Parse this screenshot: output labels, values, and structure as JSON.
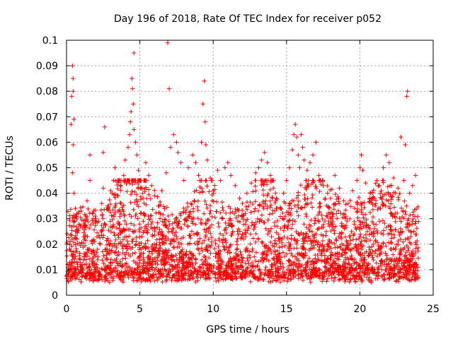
{
  "chart_data": {
    "type": "scatter",
    "title": "Day 196 of 2018, Rate Of TEC Index for receiver p052",
    "xlabel": "GPS time / hours",
    "ylabel": "ROTI / TECUs",
    "xlim": [
      0,
      25
    ],
    "ylim": [
      0,
      0.1
    ],
    "x_ticks": [
      0,
      5,
      10,
      15,
      20,
      25
    ],
    "x_tick_labels": [
      "0",
      "5",
      "10",
      "15",
      "20",
      "25"
    ],
    "y_ticks": [
      0,
      0.01,
      0.02,
      0.03,
      0.04,
      0.05,
      0.06,
      0.07,
      0.08,
      0.09,
      0.1
    ],
    "y_tick_labels": [
      "0",
      "0.01",
      "0.02",
      "0.03",
      "0.04",
      "0.05",
      "0.06",
      "0.07",
      "0.08",
      "0.09",
      "0.1"
    ],
    "grid": true,
    "marker": "+",
    "color": "#ff0000",
    "series": [
      {
        "name": "p052",
        "points": [
          [
            0.1,
            0.012
          ],
          [
            0.2,
            0.018
          ],
          [
            0.3,
            0.067
          ],
          [
            0.35,
            0.078
          ],
          [
            0.4,
            0.09
          ],
          [
            0.45,
            0.085
          ],
          [
            0.45,
            0.08
          ],
          [
            0.5,
            0.069
          ],
          [
            0.45,
            0.059
          ],
          [
            0.4,
            0.048
          ],
          [
            0.5,
            0.04
          ],
          [
            0.6,
            0.034
          ],
          [
            0.7,
            0.03
          ],
          [
            0.8,
            0.026
          ],
          [
            1.0,
            0.033
          ],
          [
            1.2,
            0.028
          ],
          [
            1.4,
            0.037
          ],
          [
            1.6,
            0.045
          ],
          [
            1.6,
            0.055
          ],
          [
            1.8,
            0.032
          ],
          [
            2.0,
            0.03
          ],
          [
            2.2,
            0.029
          ],
          [
            2.4,
            0.036
          ],
          [
            2.5,
            0.042
          ],
          [
            2.5,
            0.056
          ],
          [
            2.6,
            0.066
          ],
          [
            2.8,
            0.035
          ],
          [
            3.0,
            0.041
          ],
          [
            3.2,
            0.045
          ],
          [
            3.3,
            0.05
          ],
          [
            3.5,
            0.039
          ],
          [
            3.7,
            0.043
          ],
          [
            3.9,
            0.047
          ],
          [
            4.0,
            0.053
          ],
          [
            4.2,
            0.058
          ],
          [
            4.3,
            0.063
          ],
          [
            4.35,
            0.068
          ],
          [
            4.4,
            0.072
          ],
          [
            4.45,
            0.085
          ],
          [
            4.5,
            0.081
          ],
          [
            4.55,
            0.075
          ],
          [
            4.6,
            0.095
          ],
          [
            4.6,
            0.065
          ],
          [
            4.7,
            0.06
          ],
          [
            4.8,
            0.055
          ],
          [
            4.9,
            0.049
          ],
          [
            5.0,
            0.045
          ],
          [
            5.2,
            0.04
          ],
          [
            5.4,
            0.052
          ],
          [
            5.6,
            0.047
          ],
          [
            5.8,
            0.043
          ],
          [
            6.0,
            0.039
          ],
          [
            6.3,
            0.035
          ],
          [
            6.5,
            0.041
          ],
          [
            6.8,
            0.048
          ],
          [
            6.9,
            0.099
          ],
          [
            7.0,
            0.081
          ],
          [
            7.1,
            0.058
          ],
          [
            7.3,
            0.063
          ],
          [
            7.5,
            0.06
          ],
          [
            7.6,
            0.056
          ],
          [
            7.8,
            0.052
          ],
          [
            8.0,
            0.045
          ],
          [
            8.3,
            0.05
          ],
          [
            8.6,
            0.055
          ],
          [
            8.8,
            0.052
          ],
          [
            9.0,
            0.047
          ],
          [
            9.2,
            0.06
          ],
          [
            9.3,
            0.075
          ],
          [
            9.4,
            0.084
          ],
          [
            9.45,
            0.068
          ],
          [
            9.5,
            0.059
          ],
          [
            9.6,
            0.053
          ],
          [
            9.8,
            0.046
          ],
          [
            10.0,
            0.041
          ],
          [
            10.3,
            0.049
          ],
          [
            10.5,
            0.045
          ],
          [
            10.8,
            0.05
          ],
          [
            11.0,
            0.052
          ],
          [
            11.2,
            0.047
          ],
          [
            11.5,
            0.043
          ],
          [
            11.8,
            0.038
          ],
          [
            12.0,
            0.036
          ],
          [
            12.3,
            0.04
          ],
          [
            12.6,
            0.044
          ],
          [
            12.9,
            0.048
          ],
          [
            13.1,
            0.05
          ],
          [
            13.3,
            0.053
          ],
          [
            13.5,
            0.056
          ],
          [
            13.7,
            0.052
          ],
          [
            13.9,
            0.047
          ],
          [
            14.1,
            0.042
          ],
          [
            14.3,
            0.038
          ],
          [
            14.6,
            0.034
          ],
          [
            14.8,
            0.04
          ],
          [
            15.0,
            0.045
          ],
          [
            15.2,
            0.05
          ],
          [
            15.4,
            0.057
          ],
          [
            15.5,
            0.063
          ],
          [
            15.6,
            0.067
          ],
          [
            15.7,
            0.062
          ],
          [
            15.8,
            0.055
          ],
          [
            15.9,
            0.05
          ],
          [
            16.0,
            0.063
          ],
          [
            16.1,
            0.058
          ],
          [
            16.2,
            0.053
          ],
          [
            16.4,
            0.049
          ],
          [
            16.6,
            0.052
          ],
          [
            16.8,
            0.055
          ],
          [
            17.0,
            0.06
          ],
          [
            17.2,
            0.047
          ],
          [
            17.5,
            0.043
          ],
          [
            17.8,
            0.04
          ],
          [
            18.0,
            0.038
          ],
          [
            18.3,
            0.047
          ],
          [
            18.6,
            0.042
          ],
          [
            18.9,
            0.037
          ],
          [
            19.2,
            0.036
          ],
          [
            19.5,
            0.041
          ],
          [
            19.8,
            0.045
          ],
          [
            20.0,
            0.05
          ],
          [
            20.1,
            0.055
          ],
          [
            20.2,
            0.049
          ],
          [
            20.4,
            0.044
          ],
          [
            20.7,
            0.04
          ],
          [
            21.0,
            0.038
          ],
          [
            21.3,
            0.043
          ],
          [
            21.6,
            0.05
          ],
          [
            21.8,
            0.055
          ],
          [
            22.0,
            0.052
          ],
          [
            22.3,
            0.046
          ],
          [
            22.6,
            0.042
          ],
          [
            22.8,
            0.062
          ],
          [
            23.0,
            0.045
          ],
          [
            23.1,
            0.059
          ],
          [
            23.2,
            0.078
          ],
          [
            23.25,
            0.08
          ],
          [
            23.4,
            0.04
          ],
          [
            23.6,
            0.043
          ],
          [
            23.8,
            0.047
          ]
        ]
      }
    ]
  }
}
